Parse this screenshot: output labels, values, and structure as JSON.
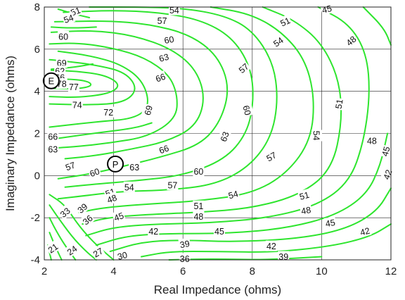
{
  "chart_data": {
    "type": "contour",
    "xlabel": "Real Impedance (ohms)",
    "ylabel": "Imaginary Impedance (ohms)",
    "xlim": [
      2,
      12
    ],
    "ylim": [
      -4,
      8
    ],
    "xticks": [
      2,
      4,
      6,
      8,
      10,
      12
    ],
    "yticks": [
      -4,
      -2,
      0,
      2,
      4,
      6,
      8
    ],
    "grid": true,
    "line_color": "#2ee52e",
    "contour_labels": [
      {
        "text": "51",
        "x": 2.9,
        "y": 7.8,
        "rot": -20
      },
      {
        "text": "54",
        "x": 2.7,
        "y": 7.45,
        "rot": -20
      },
      {
        "text": "60",
        "x": 2.55,
        "y": 6.6,
        "rot": 0
      },
      {
        "text": "69",
        "x": 2.5,
        "y": 5.35,
        "rot": 0
      },
      {
        "text": "62",
        "x": 2.45,
        "y": 4.95,
        "rot": 0
      },
      {
        "text": "66",
        "x": 2.45,
        "y": 4.65,
        "rot": 0
      },
      {
        "text": "78",
        "x": 2.5,
        "y": 4.35,
        "rot": 0
      },
      {
        "text": "77",
        "x": 2.85,
        "y": 4.2,
        "rot": 0
      },
      {
        "text": "74",
        "x": 2.95,
        "y": 3.35,
        "rot": 0
      },
      {
        "text": "72",
        "x": 3.85,
        "y": 3.0,
        "rot": 0
      },
      {
        "text": "54",
        "x": 5.75,
        "y": 7.85,
        "rot": 0
      },
      {
        "text": "57",
        "x": 5.4,
        "y": 7.35,
        "rot": 0
      },
      {
        "text": "60",
        "x": 5.6,
        "y": 6.45,
        "rot": -10
      },
      {
        "text": "63",
        "x": 5.45,
        "y": 5.6,
        "rot": -15
      },
      {
        "text": "66",
        "x": 5.35,
        "y": 4.65,
        "rot": -20
      },
      {
        "text": "69",
        "x": 5.0,
        "y": 3.1,
        "rot": -75
      },
      {
        "text": "66",
        "x": 2.25,
        "y": 1.85,
        "rot": 0
      },
      {
        "text": "63",
        "x": 2.25,
        "y": 1.25,
        "rot": 0
      },
      {
        "text": "66",
        "x": 5.45,
        "y": 1.25,
        "rot": -20
      },
      {
        "text": "63",
        "x": 7.2,
        "y": 1.85,
        "rot": -70
      },
      {
        "text": "60",
        "x": 7.85,
        "y": 3.1,
        "rot": 75
      },
      {
        "text": "57",
        "x": 7.75,
        "y": 5.1,
        "rot": -40
      },
      {
        "text": "54",
        "x": 8.75,
        "y": 6.35,
        "rot": -35
      },
      {
        "text": "51",
        "x": 8.95,
        "y": 7.3,
        "rot": -25
      },
      {
        "text": "45",
        "x": 10.15,
        "y": 7.9,
        "rot": -15
      },
      {
        "text": "48",
        "x": 10.85,
        "y": 6.4,
        "rot": -40
      },
      {
        "text": "51",
        "x": 10.5,
        "y": 3.4,
        "rot": -80
      },
      {
        "text": "54",
        "x": 9.85,
        "y": 1.9,
        "rot": 90
      },
      {
        "text": "48",
        "x": 11.45,
        "y": 1.65,
        "rot": 0
      },
      {
        "text": "45",
        "x": 11.85,
        "y": 1.15,
        "rot": -75
      },
      {
        "text": "42",
        "x": 11.9,
        "y": 0.05,
        "rot": -70
      },
      {
        "text": "57",
        "x": 2.75,
        "y": 0.45,
        "rot": -20
      },
      {
        "text": "60",
        "x": 3.45,
        "y": 0.15,
        "rot": -20
      },
      {
        "text": "63",
        "x": 4.6,
        "y": 0.4,
        "rot": 0
      },
      {
        "text": "60",
        "x": 6.45,
        "y": 0.2,
        "rot": 0
      },
      {
        "text": "57",
        "x": 5.7,
        "y": -0.45,
        "rot": 0
      },
      {
        "text": "57",
        "x": 8.55,
        "y": 0.9,
        "rot": -30
      },
      {
        "text": "54",
        "x": 4.45,
        "y": -0.55,
        "rot": 0
      },
      {
        "text": "54",
        "x": 7.45,
        "y": -0.9,
        "rot": -15
      },
      {
        "text": "51",
        "x": 3.9,
        "y": -0.8,
        "rot": -20
      },
      {
        "text": "48",
        "x": 3.95,
        "y": -1.1,
        "rot": -20
      },
      {
        "text": "51",
        "x": 6.45,
        "y": -1.45,
        "rot": 0
      },
      {
        "text": "51",
        "x": 9.5,
        "y": -0.95,
        "rot": -15
      },
      {
        "text": "48",
        "x": 6.45,
        "y": -1.95,
        "rot": 0
      },
      {
        "text": "48",
        "x": 9.55,
        "y": -1.65,
        "rot": -10
      },
      {
        "text": "45",
        "x": 4.15,
        "y": -1.95,
        "rot": -20
      },
      {
        "text": "45",
        "x": 7.05,
        "y": -2.65,
        "rot": 0
      },
      {
        "text": "45",
        "x": 10.25,
        "y": -2.25,
        "rot": -10
      },
      {
        "text": "42",
        "x": 5.15,
        "y": -2.65,
        "rot": 0
      },
      {
        "text": "42",
        "x": 8.55,
        "y": -3.35,
        "rot": 0
      },
      {
        "text": "42",
        "x": 11.25,
        "y": -2.65,
        "rot": -15
      },
      {
        "text": "39",
        "x": 3.1,
        "y": -1.55,
        "rot": -40
      },
      {
        "text": "36",
        "x": 3.25,
        "y": -2.1,
        "rot": -40
      },
      {
        "text": "33",
        "x": 2.6,
        "y": -1.75,
        "rot": -40
      },
      {
        "text": "39",
        "x": 6.05,
        "y": -3.25,
        "rot": -10
      },
      {
        "text": "39",
        "x": 8.9,
        "y": -3.85,
        "rot": 0
      },
      {
        "text": "36",
        "x": 6.05,
        "y": -3.95,
        "rot": 0
      },
      {
        "text": "21",
        "x": 2.25,
        "y": -3.45,
        "rot": -35
      },
      {
        "text": "24",
        "x": 2.8,
        "y": -3.55,
        "rot": -35
      },
      {
        "text": "27",
        "x": 3.55,
        "y": -3.65,
        "rot": -30
      },
      {
        "text": "30",
        "x": 4.25,
        "y": -3.8,
        "rot": -15
      }
    ],
    "markers": [
      {
        "label": "E",
        "x": 2.2,
        "y": 4.5
      },
      {
        "label": "P",
        "x": 4.05,
        "y": 0.55
      }
    ]
  }
}
